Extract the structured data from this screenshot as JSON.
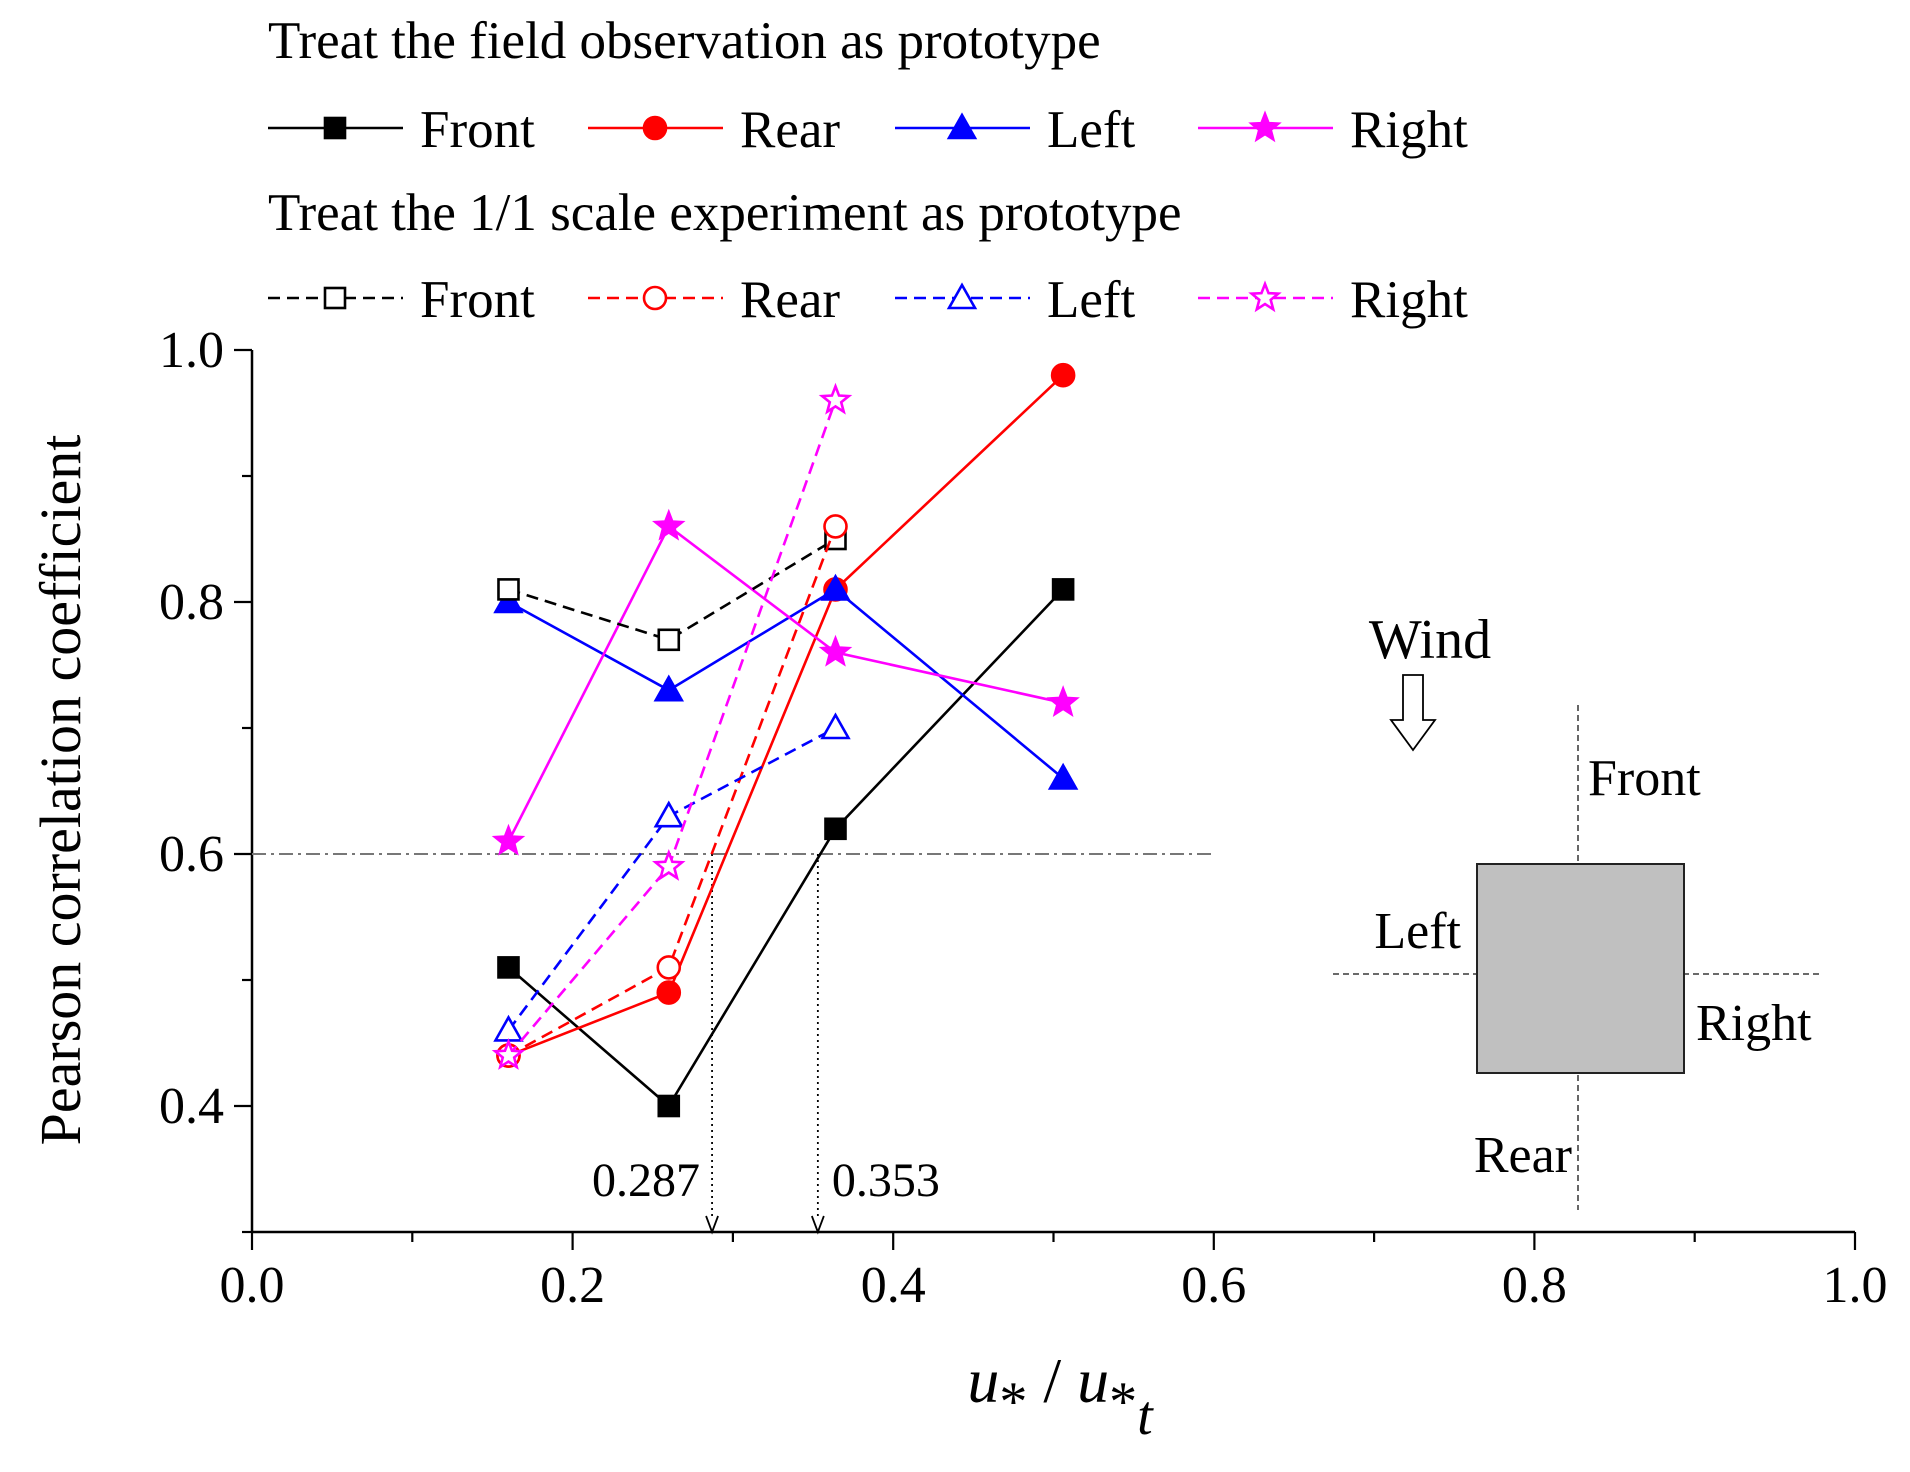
{
  "chart_data": {
    "type": "line",
    "x": [
      0.16,
      0.26,
      0.364,
      0.506
    ],
    "xlabel": {
      "main": "u",
      "sub1": "*",
      "sep": " / ",
      "main2": "u",
      "sub2": "*",
      "sub3": "t"
    },
    "ylabel": "Pearson correlation coefficient",
    "xlim": [
      0.0,
      1.0
    ],
    "ylim": [
      0.3,
      1.0
    ],
    "xticks": [
      {
        "value": 0.0,
        "label": "0.0"
      },
      {
        "value": 0.2,
        "label": "0.2"
      },
      {
        "value": 0.4,
        "label": "0.4"
      },
      {
        "value": 0.6,
        "label": "0.6"
      },
      {
        "value": 0.8,
        "label": "0.8"
      },
      {
        "value": 1.0,
        "label": "1.0"
      }
    ],
    "yticks": [
      {
        "value": 0.4,
        "label": "0.4"
      },
      {
        "value": 0.6,
        "label": "0.6"
      },
      {
        "value": 0.8,
        "label": "0.8"
      },
      {
        "value": 1.0,
        "label": "1.0"
      }
    ],
    "legend": {
      "placement": "top",
      "groups": [
        {
          "title": "Treat the field observation as prototype",
          "style": "solid",
          "filled": true
        },
        {
          "title": "Treat the 1/1 scale experiment as prototype",
          "style": "dashed",
          "filled": false
        }
      ]
    },
    "series": [
      {
        "key": "field_front",
        "name": "Front",
        "group": 0,
        "color": "#000000",
        "marker": "square",
        "filled": true,
        "dash": false,
        "x": [
          0.16,
          0.26,
          0.364,
          0.506
        ],
        "values": [
          0.51,
          0.4,
          0.62,
          0.81
        ]
      },
      {
        "key": "field_rear",
        "name": "Rear",
        "group": 0,
        "color": "#ff0000",
        "marker": "circle",
        "filled": true,
        "dash": false,
        "x": [
          0.16,
          0.26,
          0.364,
          0.506
        ],
        "values": [
          0.44,
          0.49,
          0.81,
          0.98
        ]
      },
      {
        "key": "field_left",
        "name": "Left",
        "group": 0,
        "color": "#0000ff",
        "marker": "triangle",
        "filled": true,
        "dash": false,
        "x": [
          0.16,
          0.26,
          0.364,
          0.506
        ],
        "values": [
          0.8,
          0.73,
          0.81,
          0.66
        ]
      },
      {
        "key": "field_right",
        "name": "Right",
        "group": 0,
        "color": "#ff00ff",
        "marker": "star",
        "filled": true,
        "dash": false,
        "x": [
          0.16,
          0.26,
          0.364,
          0.506
        ],
        "values": [
          0.61,
          0.86,
          0.76,
          0.72
        ]
      },
      {
        "key": "scale_front",
        "name": "Front",
        "group": 1,
        "color": "#000000",
        "marker": "square",
        "filled": false,
        "dash": true,
        "x": [
          0.16,
          0.26,
          0.364
        ],
        "values": [
          0.81,
          0.77,
          0.85
        ]
      },
      {
        "key": "scale_rear",
        "name": "Rear",
        "group": 1,
        "color": "#ff0000",
        "marker": "circle",
        "filled": false,
        "dash": true,
        "x": [
          0.16,
          0.26,
          0.364
        ],
        "values": [
          0.44,
          0.51,
          0.86
        ]
      },
      {
        "key": "scale_left",
        "name": "Left",
        "group": 1,
        "color": "#0000ff",
        "marker": "triangle",
        "filled": false,
        "dash": true,
        "x": [
          0.16,
          0.26,
          0.364
        ],
        "values": [
          0.46,
          0.63,
          0.7
        ]
      },
      {
        "key": "scale_right",
        "name": "Right",
        "group": 1,
        "color": "#ff00ff",
        "marker": "star",
        "filled": false,
        "dash": true,
        "x": [
          0.16,
          0.26,
          0.364
        ],
        "values": [
          0.44,
          0.59,
          0.96
        ]
      }
    ],
    "reference_line": {
      "y": 0.6,
      "x_end": 0.6,
      "color": "#777777"
    },
    "threshold_markers": [
      {
        "x": 0.287,
        "label": "0.287"
      },
      {
        "x": 0.353,
        "label": "0.353"
      }
    ],
    "inset": {
      "wind_label": "Wind",
      "front_label": "Front",
      "rear_label": "Rear",
      "left_label": "Left",
      "right_label": "Right",
      "building_color": "#c0c0c0"
    }
  }
}
